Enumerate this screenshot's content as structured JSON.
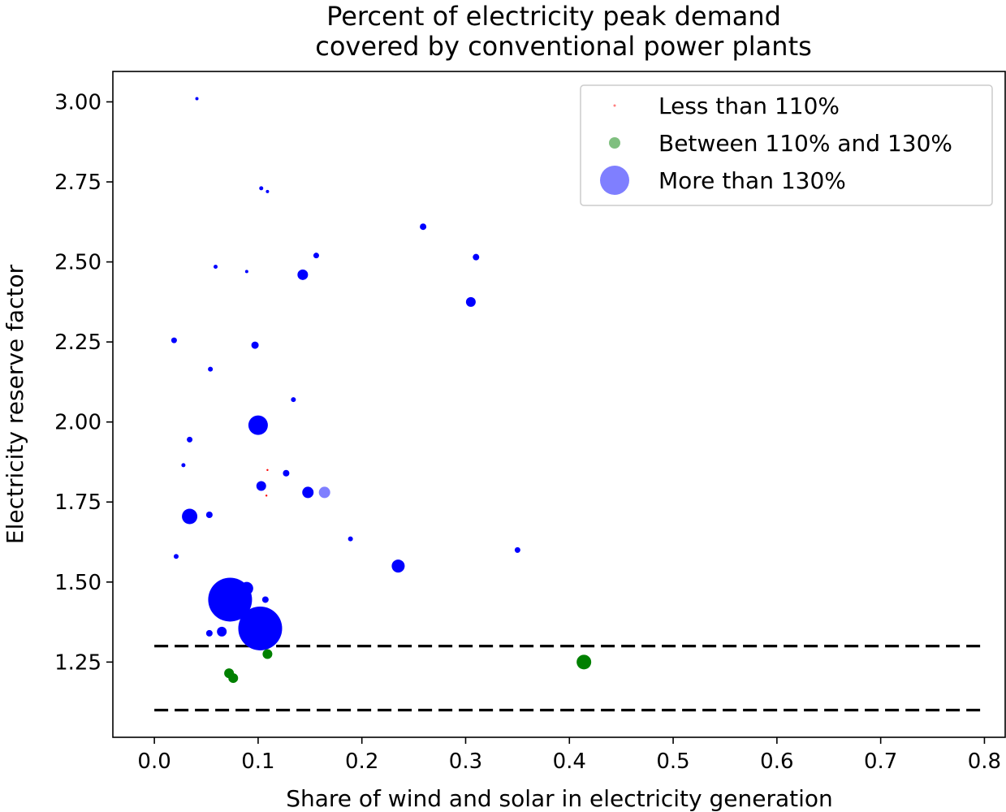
{
  "chart_data": {
    "type": "scatter",
    "title": [
      "Percent of electricity peak demand",
      "covered by conventional power plants"
    ],
    "xlabel": "Share of wind and solar in electricity generation",
    "ylabel": "Electricity reserve factor",
    "xlim": [
      -0.04,
      0.82
    ],
    "ylim": [
      1.015,
      3.095
    ],
    "xticks": [
      0.0,
      0.1,
      0.2,
      0.3,
      0.4,
      0.5,
      0.6,
      0.7,
      0.8
    ],
    "xtick_labels": [
      "0.0",
      "0.1",
      "0.2",
      "0.3",
      "0.4",
      "0.5",
      "0.6",
      "0.7",
      "0.8"
    ],
    "yticks": [
      1.25,
      1.5,
      1.75,
      2.0,
      2.25,
      2.5,
      2.75,
      3.0
    ],
    "ytick_labels": [
      "1.25",
      "1.50",
      "1.75",
      "2.00",
      "2.25",
      "2.50",
      "2.75",
      "3.00"
    ],
    "grid": false,
    "legend_position": "top-right",
    "reference_lines": [
      {
        "y": 1.3,
        "style": "dashed",
        "color": "#000000",
        "x_range": [
          0.0,
          0.8
        ]
      },
      {
        "y": 1.1,
        "style": "dashed",
        "color": "#000000",
        "x_range": [
          0.0,
          0.8
        ]
      }
    ],
    "series": [
      {
        "name": "Less than 110%",
        "color": "#ff0000",
        "legend_marker_size": 1.5,
        "points": [
          {
            "x": 0.109,
            "y": 1.85,
            "size": 1.2
          },
          {
            "x": 0.108,
            "y": 1.77,
            "size": 1.2
          }
        ]
      },
      {
        "name": "Between 110% and 130%",
        "color": "#008000",
        "legend_marker_size": 7,
        "points": [
          {
            "x": 0.414,
            "y": 1.25,
            "size": 9
          },
          {
            "x": 0.072,
            "y": 1.215,
            "size": 6
          },
          {
            "x": 0.076,
            "y": 1.2,
            "size": 6
          },
          {
            "x": 0.109,
            "y": 1.275,
            "size": 6
          }
        ]
      },
      {
        "name": "More than 130%",
        "color": "#0000ff",
        "legend_marker_size": 18,
        "points": [
          {
            "x": 0.041,
            "y": 3.01,
            "size": 2
          },
          {
            "x": 0.103,
            "y": 2.73,
            "size": 2.5
          },
          {
            "x": 0.109,
            "y": 2.72,
            "size": 2
          },
          {
            "x": 0.259,
            "y": 2.61,
            "size": 4
          },
          {
            "x": 0.156,
            "y": 2.52,
            "size": 3.5
          },
          {
            "x": 0.31,
            "y": 2.515,
            "size": 4
          },
          {
            "x": 0.059,
            "y": 2.485,
            "size": 2.5
          },
          {
            "x": 0.089,
            "y": 2.47,
            "size": 2
          },
          {
            "x": 0.143,
            "y": 2.46,
            "size": 6.5
          },
          {
            "x": 0.305,
            "y": 2.375,
            "size": 6
          },
          {
            "x": 0.019,
            "y": 2.255,
            "size": 3.5
          },
          {
            "x": 0.097,
            "y": 2.24,
            "size": 4.5
          },
          {
            "x": 0.054,
            "y": 2.165,
            "size": 3
          },
          {
            "x": 0.134,
            "y": 2.07,
            "size": 3
          },
          {
            "x": 0.1,
            "y": 1.99,
            "size": 12
          },
          {
            "x": 0.034,
            "y": 1.945,
            "size": 3.5
          },
          {
            "x": 0.028,
            "y": 1.865,
            "size": 2.5
          },
          {
            "x": 0.127,
            "y": 1.84,
            "size": 4
          },
          {
            "x": 0.103,
            "y": 1.8,
            "size": 6
          },
          {
            "x": 0.148,
            "y": 1.78,
            "size": 7
          },
          {
            "x": 0.164,
            "y": 1.78,
            "size": 7,
            "opacity": 0.5
          },
          {
            "x": 0.034,
            "y": 1.705,
            "size": 9.5
          },
          {
            "x": 0.053,
            "y": 1.71,
            "size": 4
          },
          {
            "x": 0.189,
            "y": 1.635,
            "size": 3
          },
          {
            "x": 0.35,
            "y": 1.6,
            "size": 3.5
          },
          {
            "x": 0.021,
            "y": 1.58,
            "size": 3
          },
          {
            "x": 0.235,
            "y": 1.55,
            "size": 8
          },
          {
            "x": 0.089,
            "y": 1.48,
            "size": 8
          },
          {
            "x": 0.073,
            "y": 1.445,
            "size": 27
          },
          {
            "x": 0.074,
            "y": 1.43,
            "size": 12
          },
          {
            "x": 0.107,
            "y": 1.445,
            "size": 4
          },
          {
            "x": 0.102,
            "y": 1.355,
            "size": 27
          },
          {
            "x": 0.065,
            "y": 1.345,
            "size": 6
          },
          {
            "x": 0.053,
            "y": 1.34,
            "size": 4
          }
        ]
      }
    ]
  }
}
